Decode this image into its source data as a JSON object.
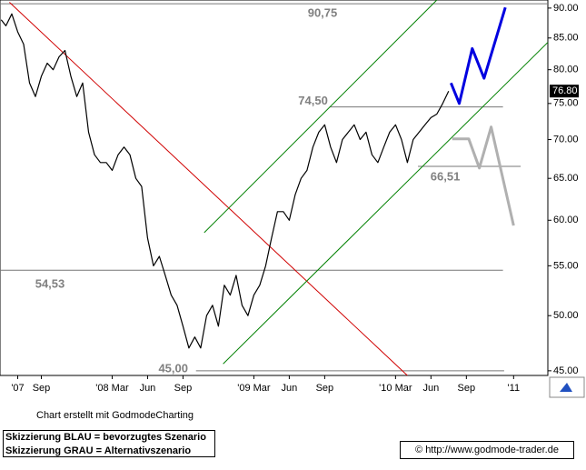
{
  "chart_data": {
    "type": "line",
    "ylog": true,
    "xlim": [
      4.5,
      50.9
    ],
    "ylim": [
      44.6,
      91.4
    ],
    "xticks": [
      {
        "value": 6,
        "label": "'07"
      },
      {
        "value": 8,
        "label": "Sep"
      },
      {
        "value": 14,
        "label": "'08 Mar"
      },
      {
        "value": 17,
        "label": "Jun"
      },
      {
        "value": 20,
        "label": "Sep"
      },
      {
        "value": 26,
        "label": "'09 Mar"
      },
      {
        "value": 29,
        "label": "Jun"
      },
      {
        "value": 32,
        "label": "Sep"
      },
      {
        "value": 38,
        "label": "'10 Mar"
      },
      {
        "value": 41,
        "label": "Jun"
      },
      {
        "value": 44,
        "label": "Sep"
      },
      {
        "value": 48,
        "label": "'11"
      }
    ],
    "yticks": [
      {
        "value": 45,
        "label": "45.00"
      },
      {
        "value": 50,
        "label": "50.00"
      },
      {
        "value": 55,
        "label": "55.00"
      },
      {
        "value": 60,
        "label": "60.00"
      },
      {
        "value": 65,
        "label": "65.00"
      },
      {
        "value": 70,
        "label": "70.00"
      },
      {
        "value": 75,
        "label": "75.00"
      },
      {
        "value": 80,
        "label": "80.00"
      },
      {
        "value": 85,
        "label": "85.00"
      },
      {
        "value": 90,
        "label": "90.00"
      }
    ],
    "last_price": {
      "value": 76.8,
      "label": "76.80"
    },
    "series": [
      {
        "color": "#000000",
        "x": [
          4.6,
          5,
          5.5,
          6,
          6.5,
          7,
          7.5,
          8,
          8.5,
          9,
          9.5,
          10,
          10.5,
          11,
          11.5,
          12,
          12.5,
          13,
          13.5,
          14,
          14.5,
          15,
          15.5,
          16,
          16.5,
          17,
          17.5,
          18,
          18.5,
          19,
          19.5,
          20,
          20.5,
          21,
          21.5,
          22,
          22.5,
          23,
          23.5,
          24,
          24.5,
          25,
          25.5,
          26,
          26.5,
          27,
          27.5,
          28,
          28.5,
          29,
          29.5,
          30,
          30.5,
          31,
          31.5,
          32,
          32.5,
          33,
          33.5,
          34,
          34.5,
          35,
          35.5,
          36,
          36.5,
          37,
          37.5,
          38,
          38.5,
          39,
          39.5,
          40,
          40.5,
          41,
          41.5,
          42,
          42.5
        ],
        "values": [
          88,
          87,
          89,
          86,
          84,
          78,
          76,
          79,
          81,
          80,
          82,
          83,
          79,
          76,
          78,
          71,
          68,
          67,
          67,
          66,
          68,
          69,
          68,
          65,
          64,
          58,
          55,
          56,
          54,
          52,
          51,
          49,
          47,
          48,
          47,
          50,
          51,
          49,
          53,
          52,
          54,
          51,
          50,
          52,
          53,
          55,
          58,
          61,
          61,
          60,
          63,
          65,
          66,
          69,
          71,
          72,
          69,
          67,
          70,
          71,
          72,
          70,
          71,
          68,
          67,
          69,
          71,
          72,
          70,
          67,
          70,
          71,
          72,
          73,
          73.5,
          75,
          76.8
        ]
      },
      {
        "color": "#0000e0",
        "x": [
          42.7,
          43.4,
          44.5,
          45.5,
          47.3
        ],
        "values": [
          78.0,
          75.0,
          83.3,
          78.7,
          90.1
        ]
      },
      {
        "color": "#b0b0b0",
        "x": [
          42.8,
          44.2,
          45.1,
          46.1,
          48.0
        ],
        "values": [
          70.1,
          70.1,
          66.3,
          71.7,
          59.4
        ]
      }
    ],
    "levels": [
      {
        "value": 90.75,
        "label": "90,75",
        "x": [
          4.5,
          50.9
        ]
      },
      {
        "value": 74.5,
        "label": "74,50",
        "x": [
          32.4,
          47.1
        ]
      },
      {
        "value": 66.51,
        "label": "66,51",
        "x": [
          39.9,
          48.6
        ]
      },
      {
        "value": 54.53,
        "label": "54,53",
        "x": [
          4.5,
          47.1
        ]
      },
      {
        "value": 45.0,
        "label": "45,00",
        "x": [
          21.1,
          47.2
        ]
      }
    ],
    "trendlines": [
      {
        "color": "#d00000",
        "x": [
          5.3,
          39.0
        ],
        "values": [
          91.0,
          44.6
        ]
      },
      {
        "color": "#008000",
        "x": [
          21.8,
          41.5
        ],
        "values": [
          58.6,
          91.4
        ]
      },
      {
        "color": "#008000",
        "x": [
          23.4,
          50.9
        ],
        "values": [
          45.6,
          84.3
        ]
      }
    ],
    "credit": "Chart erstellt mit GodmodeCharting",
    "notes": [
      "Skizzierung BLAU = bevorzugtes Szenario",
      "Skizzierung GRAU = Alternativszenario"
    ],
    "url": "© http://www.godmode-trader.de"
  }
}
